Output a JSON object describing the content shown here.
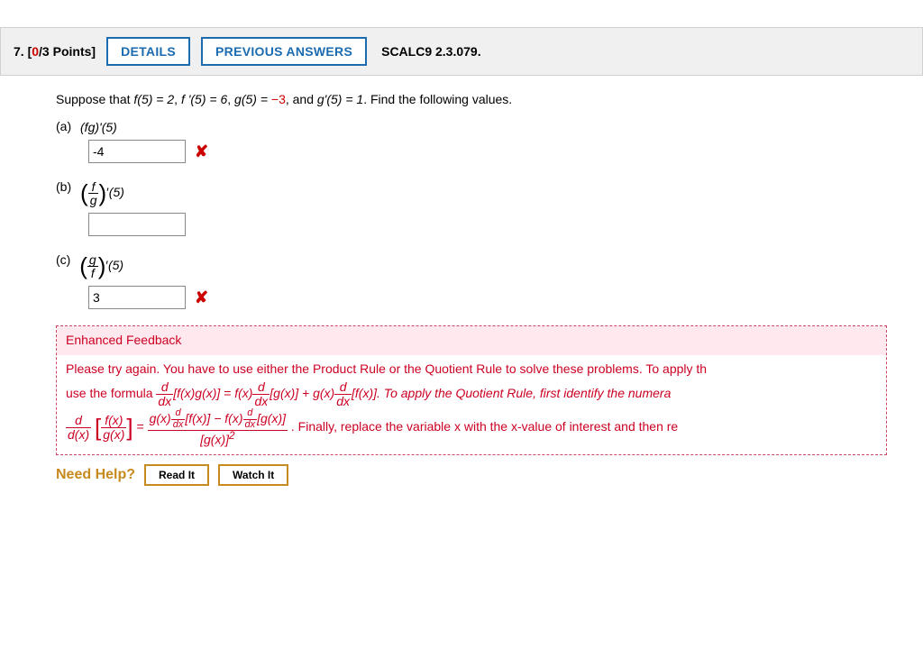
{
  "header": {
    "qnum": "7.",
    "points_label": "[",
    "points_earned": "0",
    "points_total": "/3 Points]",
    "details_btn": "DETAILS",
    "prev_btn": "PREVIOUS ANSWERS",
    "reference": "SCALC9 2.3.079."
  },
  "prompt": {
    "pre": "Suppose that ",
    "f5": "f(5) = 2",
    "sep1": ", ",
    "fp5": "f '(5) = 6",
    "sep2": ", ",
    "g5_lhs": "g(5) = ",
    "g5_val": "−3",
    "sep3": ", and ",
    "gp5": "g'(5) = 1",
    "post": ". Find the following values."
  },
  "parts": {
    "a": {
      "label": "(a)",
      "expr": "(fg)'(5)",
      "answer": "-4"
    },
    "b": {
      "label": "(b)",
      "num": "f",
      "den": "g",
      "at": "(5)",
      "answer": ""
    },
    "c": {
      "label": "(c)",
      "num": "g",
      "den": "f",
      "at": "(5)",
      "answer": "3"
    }
  },
  "feedback": {
    "title": "Enhanced Feedback",
    "body_pre": "Please try again. You have to use either the Product Rule or the Quotient Rule to solve these problems. To apply th",
    "use_formula": "use the formula ",
    "prod_mid": "[f(x)g(x)] = f(x)",
    "prod_mid2": "[g(x)] + g(x)",
    "prod_end": "[f(x)]. To apply the Quotient Rule, first identify the numera",
    "quot_lhs_num": "f(x)",
    "quot_lhs_den": "g(x)",
    "eq": " = ",
    "quot_num_a": "g(x)",
    "quot_num_b": "[f(x)] − f(x)",
    "quot_num_c": "[g(x)]",
    "quot_den": "[g(x)]",
    "sq": "2",
    "final": ". Finally, replace the variable x with the x-value of interest and then re"
  },
  "help": {
    "label": "Need Help?",
    "read": "Read It",
    "watch": "Watch It"
  },
  "style": {
    "accent": "#1a6bb0",
    "error": "#cc0000",
    "feedback_border": "#cc4466",
    "feedback_bg": "#ffe8ee",
    "help_accent": "#c68a1e"
  }
}
